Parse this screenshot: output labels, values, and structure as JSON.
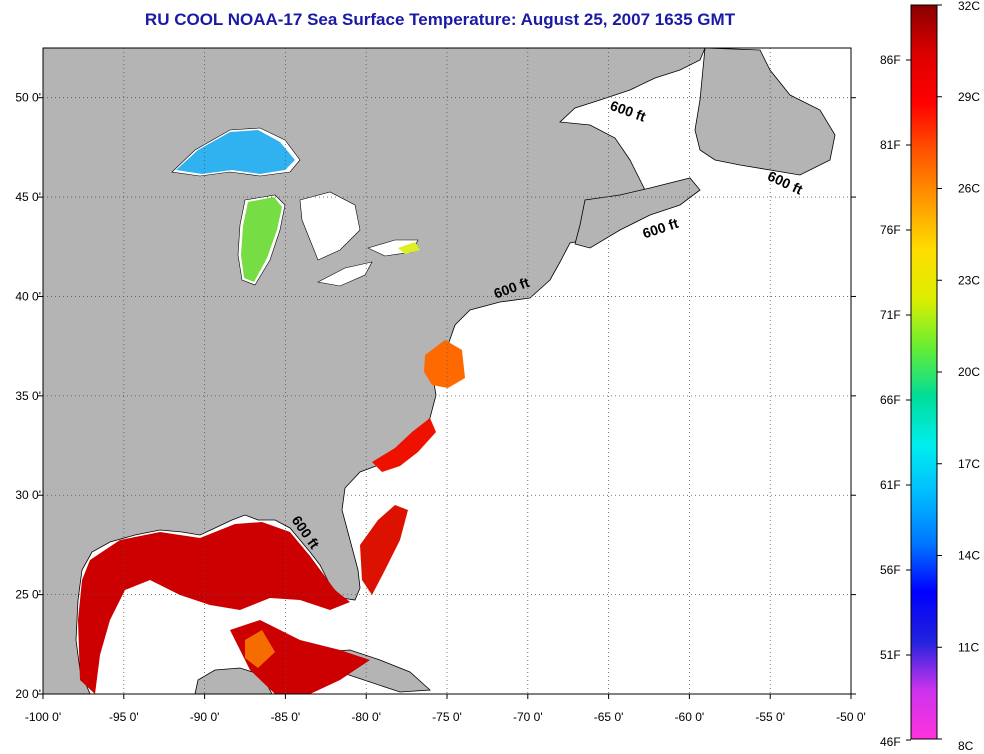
{
  "title": "RU COOL  NOAA-17  Sea Surface Temperature:  August 25, 2007 1635 GMT",
  "map": {
    "lon_range": [
      -100,
      -50
    ],
    "lat_range": [
      20,
      52.5
    ],
    "lon_ticks": [
      "-100 0'",
      "-95 0'",
      "-90 0'",
      "-85 0'",
      "-80 0'",
      "-75 0'",
      "-70 0'",
      "-65 0'",
      "-60 0'",
      "-55 0'",
      "-50 0'"
    ],
    "lat_ticks": [
      "20 0'",
      "25 0'",
      "30 0'",
      "35 0'",
      "40 0'",
      "45 0'",
      "50 0'"
    ],
    "grid": "dotted",
    "land_color": "#b4b4b4",
    "ocean_color": "#ffffff",
    "contour_labels": [
      {
        "text": "600 ft",
        "lon": -63.9,
        "lat": 49.1
      },
      {
        "text": "600 ft",
        "lon": -54.2,
        "lat": 45.5
      },
      {
        "text": "600 ft",
        "lon": -61.7,
        "lat": 43.2
      },
      {
        "text": "600 ft",
        "lon": -70.9,
        "lat": 40.2
      },
      {
        "text": "600 ft",
        "lon": -84.0,
        "lat": 28.0
      }
    ]
  },
  "colorbar": {
    "position": "right",
    "celsius_labels": [
      "32C",
      "29C",
      "26C",
      "23C",
      "20C",
      "17C",
      "14C",
      "11C",
      "8C"
    ],
    "fahrenheit_labels": [
      "86F",
      "81F",
      "76F",
      "71F",
      "66F",
      "61F",
      "56F",
      "51F",
      "46F"
    ],
    "colors": [
      "#ff33dd",
      "#cc33ee",
      "#2222dd",
      "#0000ff",
      "#0077ff",
      "#00bbff",
      "#00eeee",
      "#00dd99",
      "#66ee33",
      "#ddee00",
      "#ffdd00",
      "#ff9900",
      "#ff5500",
      "#ff0000",
      "#dd0000",
      "#880000"
    ]
  }
}
